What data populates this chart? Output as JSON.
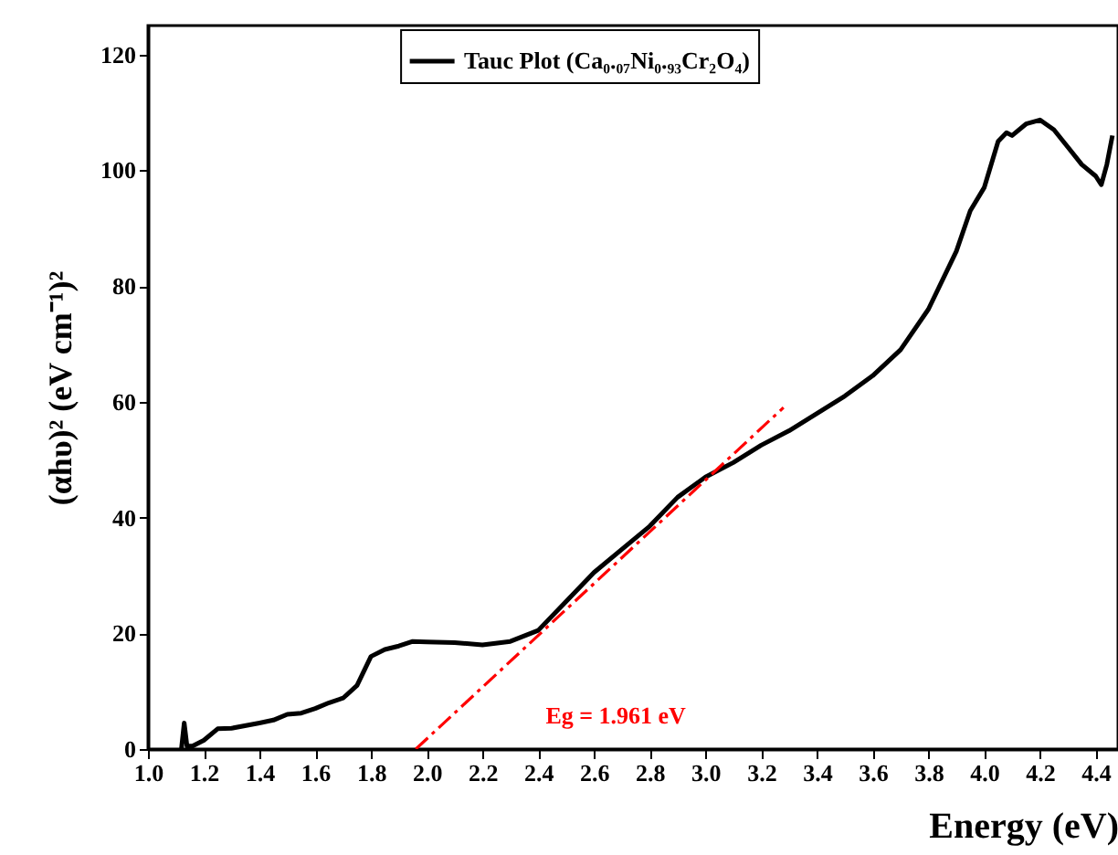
{
  "chart_data": {
    "type": "line",
    "xlabel": "Energy (eV)",
    "ylabel": "(αhυ)² (eV cm⁻¹)²",
    "xlim": [
      1.0,
      4.48
    ],
    "ylim": [
      0,
      125
    ],
    "xticks": [
      {
        "value": 1.0,
        "label": "1.0"
      },
      1.2,
      1.4,
      1.6,
      1.8,
      {
        "value": 2.0,
        "label": "2.0"
      },
      2.2,
      2.4,
      2.6,
      2.8,
      {
        "value": 3.0,
        "label": "3.0"
      },
      3.2,
      3.4,
      3.6,
      3.8,
      {
        "value": 4.0,
        "label": "4.0"
      },
      4.2,
      4.4
    ],
    "yticks": [
      0,
      20,
      40,
      60,
      80,
      100,
      120
    ],
    "legend": "top",
    "grid": false,
    "annotations": [
      "Eg = 1.961 eV"
    ],
    "series": [
      {
        "name": "Tauc Plot (Ca₀.₀₇Ni₀.₉₃Cr₂O₄)",
        "color": "#000000",
        "line_style": "solid",
        "x": [
          1.12,
          1.13,
          1.14,
          1.16,
          1.2,
          1.25,
          1.3,
          1.4,
          1.45,
          1.5,
          1.55,
          1.6,
          1.65,
          1.7,
          1.75,
          1.8,
          1.85,
          1.9,
          1.95,
          2.0,
          2.1,
          2.2,
          2.3,
          2.4,
          2.5,
          2.6,
          2.7,
          2.8,
          2.9,
          3.0,
          3.1,
          3.2,
          3.3,
          3.4,
          3.5,
          3.6,
          3.7,
          3.8,
          3.9,
          3.95,
          4.0,
          4.05,
          4.08,
          4.1,
          4.15,
          4.2,
          4.25,
          4.3,
          4.35,
          4.4,
          4.42,
          4.44,
          4.46
        ],
        "values": [
          0,
          4.5,
          0.5,
          0.5,
          1.5,
          3.5,
          3.6,
          4.5,
          5,
          6,
          6.2,
          7,
          8,
          8.8,
          11,
          16,
          17.2,
          17.8,
          18.6,
          18.5,
          18.4,
          18,
          18.6,
          20.5,
          25.5,
          30.5,
          34.5,
          38.5,
          43.5,
          47,
          49.5,
          52.5,
          55,
          58,
          61,
          64.5,
          69,
          76,
          86,
          93,
          97,
          105,
          106.5,
          106,
          108,
          108.7,
          107,
          104,
          101,
          99,
          97.5,
          101,
          106
        ]
      },
      {
        "type": "line",
        "color": "#ff0000",
        "line_style": "dashed",
        "x": [
          1.961,
          3.28
        ],
        "values": [
          0,
          59
        ]
      }
    ]
  }
}
